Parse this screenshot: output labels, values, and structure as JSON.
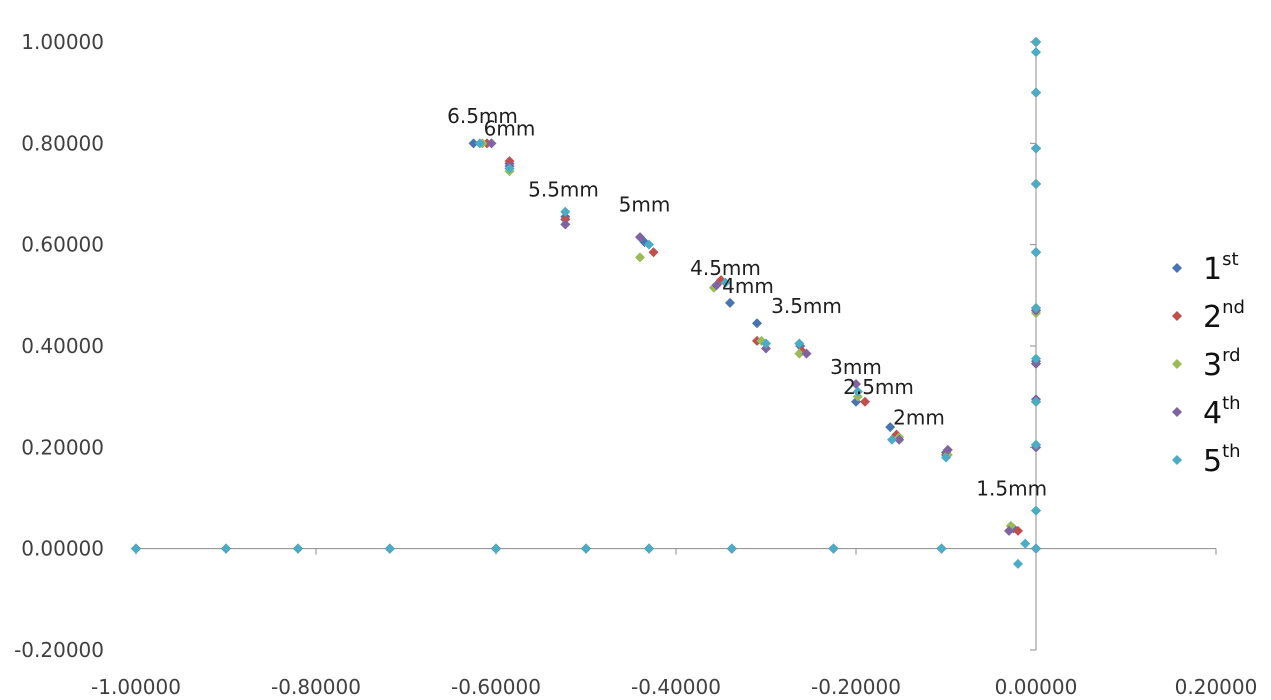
{
  "chart_data": {
    "type": "scatter",
    "title": "",
    "xlabel": "",
    "ylabel": "",
    "xlim": [
      -1.0,
      0.2
    ],
    "ylim": [
      -0.2,
      1.0
    ],
    "grid": false,
    "legend_position": "right",
    "x_ticks": [
      {
        "value": -1.0,
        "label": "-1.00000"
      },
      {
        "value": -0.8,
        "label": "-0.80000"
      },
      {
        "value": -0.6,
        "label": "-0.60000"
      },
      {
        "value": -0.4,
        "label": "-0.40000"
      },
      {
        "value": -0.2,
        "label": "-0.20000"
      },
      {
        "value": 0.0,
        "label": "0.00000"
      },
      {
        "value": 0.2,
        "label": "0.20000"
      }
    ],
    "y_ticks": [
      {
        "value": -0.2,
        "label": "-0.20000"
      },
      {
        "value": 0.0,
        "label": "0.00000"
      },
      {
        "value": 0.2,
        "label": "0.20000"
      },
      {
        "value": 0.4,
        "label": "0.40000"
      },
      {
        "value": 0.6,
        "label": "0.60000"
      },
      {
        "value": 0.8,
        "label": "0.80000"
      },
      {
        "value": 1.0,
        "label": "1.00000"
      }
    ],
    "annotations": [
      {
        "text": "6.5mm",
        "x": -0.615,
        "y": 0.84
      },
      {
        "text": "6mm",
        "x": -0.585,
        "y": 0.815
      },
      {
        "text": "5.5mm",
        "x": -0.525,
        "y": 0.695
      },
      {
        "text": "5mm",
        "x": -0.435,
        "y": 0.665
      },
      {
        "text": "4.5mm",
        "x": -0.345,
        "y": 0.54
      },
      {
        "text": "4mm",
        "x": -0.32,
        "y": 0.505
      },
      {
        "text": "3.5mm",
        "x": -0.255,
        "y": 0.465
      },
      {
        "text": "3mm",
        "x": -0.2,
        "y": 0.345
      },
      {
        "text": "2.5mm",
        "x": -0.175,
        "y": 0.305
      },
      {
        "text": "2mm",
        "x": -0.13,
        "y": 0.245
      },
      {
        "text": "1.5mm",
        "x": -0.027,
        "y": 0.105
      }
    ],
    "series": [
      {
        "name": "1st",
        "legend_base": "1",
        "legend_sup": "st",
        "color": "#4a74b0",
        "points": [
          [
            -1.0,
            0.0
          ],
          [
            -0.9,
            0.0
          ],
          [
            -0.82,
            0.0
          ],
          [
            -0.718,
            0.0
          ],
          [
            -0.6,
            0.0
          ],
          [
            -0.5,
            0.0
          ],
          [
            -0.43,
            0.0
          ],
          [
            -0.338,
            0.0
          ],
          [
            -0.225,
            0.0
          ],
          [
            -0.105,
            0.0
          ],
          [
            0.0,
            0.0
          ],
          [
            -0.625,
            0.8
          ],
          [
            -0.585,
            0.76
          ],
          [
            -0.523,
            0.655
          ],
          [
            -0.435,
            0.605
          ],
          [
            -0.34,
            0.485
          ],
          [
            -0.31,
            0.445
          ],
          [
            -0.262,
            0.4
          ],
          [
            -0.2,
            0.29
          ],
          [
            -0.162,
            0.24
          ],
          [
            -0.1,
            0.19
          ],
          [
            -0.025,
            0.04
          ],
          [
            0.0,
            1.0
          ],
          [
            0.0,
            0.9
          ],
          [
            0.0,
            0.79
          ],
          [
            0.0,
            0.72
          ],
          [
            0.0,
            0.585
          ],
          [
            0.0,
            0.475
          ],
          [
            0.0,
            0.37
          ],
          [
            0.0,
            0.29
          ],
          [
            0.0,
            0.205
          ],
          [
            0.0,
            0.075
          ]
        ]
      },
      {
        "name": "2nd",
        "legend_base": "2",
        "legend_sup": "nd",
        "color": "#c0504d",
        "points": [
          [
            -1.0,
            0.0
          ],
          [
            -0.9,
            0.0
          ],
          [
            -0.82,
            0.0
          ],
          [
            -0.718,
            0.0
          ],
          [
            -0.6,
            0.0
          ],
          [
            -0.5,
            0.0
          ],
          [
            -0.43,
            0.0
          ],
          [
            -0.338,
            0.0
          ],
          [
            -0.225,
            0.0
          ],
          [
            -0.105,
            0.0
          ],
          [
            0.0,
            0.0
          ],
          [
            -0.61,
            0.8
          ],
          [
            -0.585,
            0.765
          ],
          [
            -0.523,
            0.65
          ],
          [
            -0.425,
            0.585
          ],
          [
            -0.35,
            0.53
          ],
          [
            -0.31,
            0.41
          ],
          [
            -0.26,
            0.39
          ],
          [
            -0.19,
            0.29
          ],
          [
            -0.155,
            0.225
          ],
          [
            -0.1,
            0.185
          ],
          [
            -0.02,
            0.035
          ],
          [
            0.0,
            1.0
          ],
          [
            0.0,
            0.9
          ],
          [
            0.0,
            0.79
          ],
          [
            0.0,
            0.72
          ],
          [
            0.0,
            0.585
          ],
          [
            0.0,
            0.47
          ],
          [
            0.0,
            0.365
          ],
          [
            0.0,
            0.29
          ],
          [
            0.0,
            0.2
          ]
        ]
      },
      {
        "name": "3rd",
        "legend_base": "3",
        "legend_sup": "rd",
        "color": "#9bbb59",
        "points": [
          [
            -1.0,
            0.0
          ],
          [
            -0.9,
            0.0
          ],
          [
            -0.82,
            0.0
          ],
          [
            -0.718,
            0.0
          ],
          [
            -0.6,
            0.0
          ],
          [
            -0.5,
            0.0
          ],
          [
            -0.43,
            0.0
          ],
          [
            -0.338,
            0.0
          ],
          [
            -0.225,
            0.0
          ],
          [
            -0.105,
            0.0
          ],
          [
            0.0,
            0.0
          ],
          [
            -0.615,
            0.8
          ],
          [
            -0.585,
            0.745
          ],
          [
            -0.523,
            0.64
          ],
          [
            -0.44,
            0.575
          ],
          [
            -0.358,
            0.515
          ],
          [
            -0.305,
            0.41
          ],
          [
            -0.263,
            0.385
          ],
          [
            -0.198,
            0.3
          ],
          [
            -0.152,
            0.22
          ],
          [
            -0.098,
            0.185
          ],
          [
            -0.028,
            0.045
          ],
          [
            0.0,
            1.0
          ],
          [
            0.0,
            0.9
          ],
          [
            0.0,
            0.79
          ],
          [
            0.0,
            0.72
          ],
          [
            0.0,
            0.585
          ],
          [
            0.0,
            0.465
          ],
          [
            0.0,
            0.365
          ],
          [
            0.0,
            0.29
          ],
          [
            0.0,
            0.2
          ]
        ]
      },
      {
        "name": "4th",
        "legend_base": "4",
        "legend_sup": "th",
        "color": "#8064a2",
        "points": [
          [
            -1.0,
            0.0
          ],
          [
            -0.9,
            0.0
          ],
          [
            -0.82,
            0.0
          ],
          [
            -0.718,
            0.0
          ],
          [
            -0.6,
            0.0
          ],
          [
            -0.5,
            0.0
          ],
          [
            -0.43,
            0.0
          ],
          [
            -0.338,
            0.0
          ],
          [
            -0.225,
            0.0
          ],
          [
            -0.105,
            0.0
          ],
          [
            0.0,
            0.0
          ],
          [
            -0.605,
            0.8
          ],
          [
            -0.585,
            0.755
          ],
          [
            -0.523,
            0.64
          ],
          [
            -0.44,
            0.615
          ],
          [
            -0.355,
            0.52
          ],
          [
            -0.3,
            0.395
          ],
          [
            -0.255,
            0.385
          ],
          [
            -0.2,
            0.325
          ],
          [
            -0.152,
            0.215
          ],
          [
            -0.098,
            0.195
          ],
          [
            -0.03,
            0.035
          ],
          [
            0.0,
            1.0
          ],
          [
            0.0,
            0.9
          ],
          [
            0.0,
            0.79
          ],
          [
            0.0,
            0.72
          ],
          [
            0.0,
            0.585
          ],
          [
            0.0,
            0.47
          ],
          [
            0.0,
            0.365
          ],
          [
            0.0,
            0.295
          ],
          [
            0.0,
            0.2
          ]
        ]
      },
      {
        "name": "5th",
        "legend_base": "5",
        "legend_sup": "th",
        "color": "#4bacc6",
        "points": [
          [
            -1.0,
            0.0
          ],
          [
            -0.9,
            0.0
          ],
          [
            -0.82,
            0.0
          ],
          [
            -0.718,
            0.0
          ],
          [
            -0.6,
            0.0
          ],
          [
            -0.5,
            0.0
          ],
          [
            -0.43,
            0.0
          ],
          [
            -0.338,
            0.0
          ],
          [
            -0.225,
            0.0
          ],
          [
            -0.105,
            0.0
          ],
          [
            0.0,
            0.0
          ],
          [
            -0.618,
            0.8
          ],
          [
            -0.585,
            0.75
          ],
          [
            -0.523,
            0.665
          ],
          [
            -0.43,
            0.6
          ],
          [
            -0.345,
            0.525
          ],
          [
            -0.3,
            0.405
          ],
          [
            -0.263,
            0.405
          ],
          [
            -0.198,
            0.31
          ],
          [
            -0.16,
            0.215
          ],
          [
            -0.1,
            0.18
          ],
          [
            -0.012,
            0.01
          ],
          [
            -0.02,
            -0.03
          ],
          [
            0.0,
            1.0
          ],
          [
            0.0,
            0.98
          ],
          [
            0.0,
            0.9
          ],
          [
            0.0,
            0.79
          ],
          [
            0.0,
            0.72
          ],
          [
            0.0,
            0.585
          ],
          [
            0.0,
            0.475
          ],
          [
            0.0,
            0.375
          ],
          [
            0.0,
            0.29
          ],
          [
            0.0,
            0.205
          ],
          [
            0.0,
            0.075
          ]
        ]
      }
    ]
  }
}
